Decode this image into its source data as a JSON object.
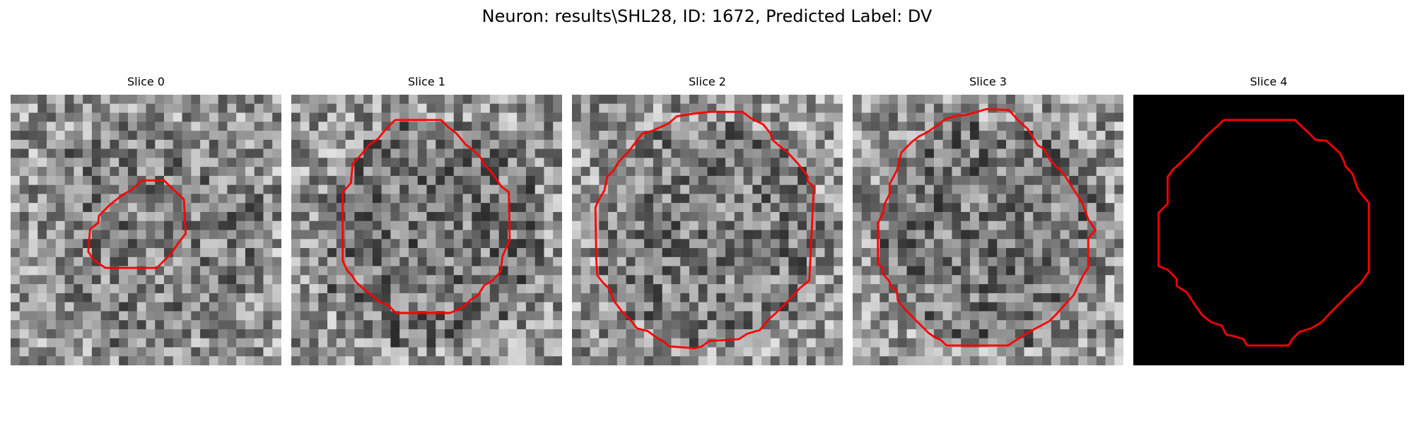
{
  "figure": {
    "title": "Neuron: results\\SHL28, ID: 1672, Predicted Label: DV"
  },
  "slices": [
    {
      "title": "Slice 0",
      "style": "noise",
      "seed": 11,
      "darkness": 0.25
    },
    {
      "title": "Slice 1",
      "style": "noise",
      "seed": 23,
      "darkness": 0.35
    },
    {
      "title": "Slice 2",
      "style": "noise",
      "seed": 37,
      "darkness": 0.3
    },
    {
      "title": "Slice 3",
      "style": "noise",
      "seed": 51,
      "darkness": 0.35
    },
    {
      "title": "Slice 4",
      "style": "black",
      "seed": 0,
      "darkness": 1.0
    }
  ],
  "colors": {
    "background": "#ffffff",
    "contour": "#ff0000"
  }
}
